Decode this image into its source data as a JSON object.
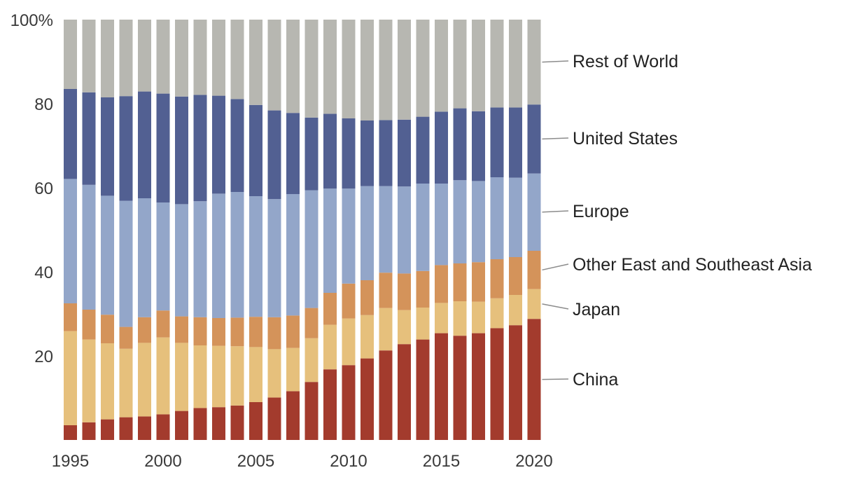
{
  "chart_data": {
    "type": "bar",
    "stacked": true,
    "title": "",
    "xlabel": "",
    "ylabel": "",
    "ylim": [
      0,
      100
    ],
    "y_ticks": [
      20,
      40,
      60,
      80,
      100
    ],
    "y_tick_labels": [
      "20",
      "40",
      "60",
      "80",
      "100%"
    ],
    "x_tick_labels": [
      "1995",
      "2000",
      "2005",
      "2010",
      "2015",
      "2020"
    ],
    "grid": false,
    "legend_placement": "right",
    "categories": [
      1995,
      1996,
      1997,
      1998,
      1999,
      2000,
      2001,
      2002,
      2003,
      2004,
      2005,
      2006,
      2007,
      2008,
      2009,
      2010,
      2011,
      2012,
      2013,
      2014,
      2015,
      2016,
      2017,
      2018,
      2019,
      2020
    ],
    "series": [
      {
        "name": "China",
        "color": "#a33b2d",
        "values": [
          3.5,
          4.2,
          4.9,
          5.4,
          5.6,
          6.1,
          6.9,
          7.6,
          7.8,
          8.2,
          9.0,
          10.1,
          11.6,
          13.8,
          16.8,
          17.8,
          19.4,
          21.3,
          22.8,
          23.9,
          25.4,
          24.8,
          25.4,
          26.6,
          27.3,
          28.8
        ]
      },
      {
        "name": "Japan",
        "color": "#e6c07c",
        "values": [
          22.4,
          19.7,
          18.1,
          16.3,
          17.5,
          18.3,
          16.2,
          14.9,
          14.6,
          14.1,
          13.1,
          11.5,
          10.3,
          10.4,
          10.6,
          11.1,
          10.3,
          10.1,
          8.1,
          7.6,
          7.2,
          8.2,
          7.5,
          7.1,
          7.2,
          7.1
        ]
      },
      {
        "name": "Other East and Southeast Asia",
        "color": "#d4935a",
        "values": [
          6.6,
          7.1,
          6.8,
          5.2,
          6.1,
          6.4,
          6.3,
          6.7,
          6.6,
          6.8,
          7.2,
          7.6,
          7.7,
          7.2,
          7.6,
          8.3,
          8.3,
          8.4,
          8.7,
          8.7,
          9.0,
          9.0,
          9.4,
          9.3,
          9.0,
          9.1
        ]
      },
      {
        "name": "Europe",
        "color": "#93a6c9",
        "values": [
          29.6,
          29.7,
          28.3,
          30.0,
          28.3,
          25.7,
          26.7,
          27.6,
          29.6,
          29.9,
          28.7,
          28.1,
          28.9,
          28.0,
          24.8,
          22.6,
          22.4,
          20.6,
          20.7,
          20.8,
          19.4,
          19.8,
          19.3,
          19.5,
          18.9,
          18.4
        ]
      },
      {
        "name": "United States",
        "color": "#526092",
        "values": [
          21.4,
          22.0,
          23.4,
          24.9,
          25.4,
          25.9,
          25.6,
          25.3,
          23.3,
          22.1,
          21.7,
          21.1,
          19.3,
          17.3,
          17.8,
          16.7,
          15.6,
          15.7,
          15.9,
          15.9,
          17.1,
          17.1,
          16.6,
          16.6,
          16.7,
          16.4
        ]
      },
      {
        "name": "Rest of World",
        "color": "#b7b7b1",
        "values": [
          16.5,
          17.3,
          18.5,
          18.2,
          17.1,
          17.6,
          18.3,
          17.9,
          18.1,
          18.9,
          20.3,
          21.6,
          22.2,
          23.3,
          22.4,
          23.5,
          24.0,
          23.9,
          23.8,
          23.1,
          21.9,
          21.1,
          21.8,
          20.9,
          20.9,
          20.2
        ]
      }
    ]
  }
}
